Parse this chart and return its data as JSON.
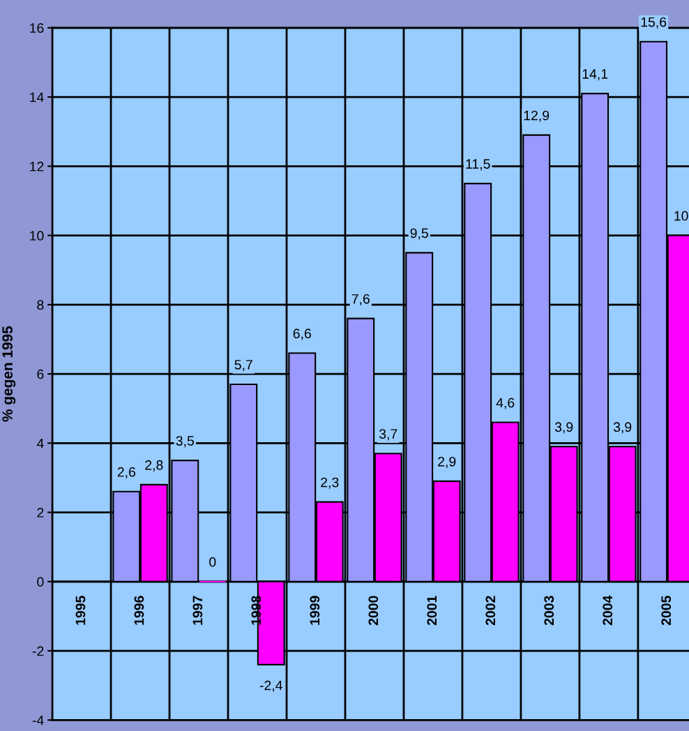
{
  "chart_data": {
    "type": "bar",
    "ylabel": "% gegen 1995",
    "categories": [
      "1995",
      "1996",
      "1997",
      "1998",
      "1999",
      "2000",
      "2001",
      "2002",
      "2003",
      "2004",
      "2005"
    ],
    "series": [
      {
        "color": "#9999ff",
        "values": [
          null,
          2.6,
          3.5,
          5.7,
          6.6,
          7.6,
          9.5,
          11.5,
          12.9,
          14.1,
          15.6
        ],
        "value_labels": [
          null,
          "2,6",
          "3,5",
          "5,7",
          "6,6",
          "7,6",
          "9,5",
          "11,5",
          "12,9",
          "14,1",
          "15,6"
        ]
      },
      {
        "color": "#ff00ff",
        "values": [
          null,
          2.8,
          0,
          -2.4,
          2.3,
          3.7,
          2.9,
          4.6,
          3.9,
          3.9,
          10
        ],
        "value_labels": [
          null,
          "2,8",
          "0",
          "-2,4",
          "2,3",
          "3,7",
          "2,9",
          "4,6",
          "3,9",
          "3,9",
          "10"
        ]
      }
    ],
    "ylim": [
      -4,
      16
    ],
    "yticks": [
      {
        "value": -4,
        "label": "-4"
      },
      {
        "value": -2,
        "label": "-2"
      },
      0,
      2,
      4,
      6,
      8,
      10,
      12,
      14,
      16
    ],
    "grid": true,
    "legend": false
  }
}
